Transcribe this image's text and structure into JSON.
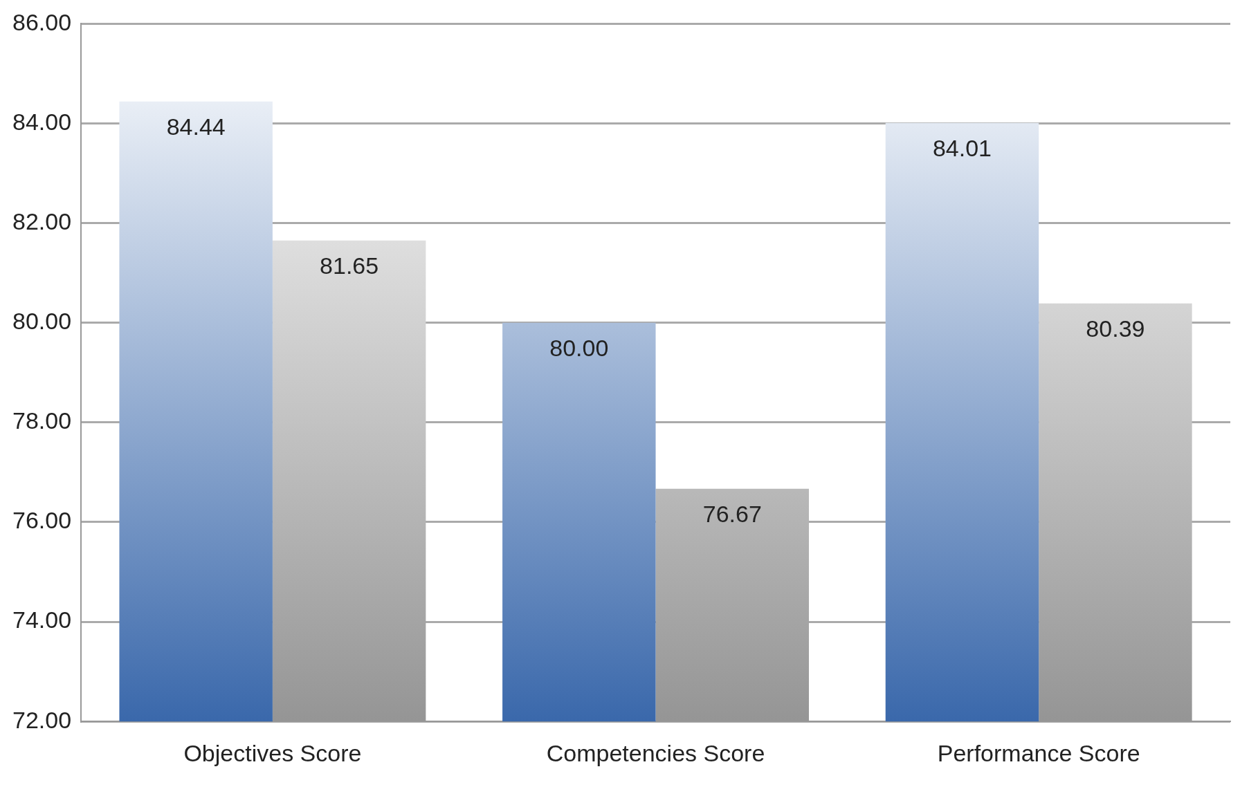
{
  "chart_data": {
    "type": "bar",
    "categories": [
      "Objectives Score",
      "Competencies Score",
      "Performance Score"
    ],
    "series": [
      {
        "color": "#3a68ab",
        "values": [
          84.44,
          80.0,
          84.01
        ],
        "value_labels": [
          "84.44",
          "80.00",
          "84.01"
        ]
      },
      {
        "color": "#959595",
        "values": [
          81.65,
          76.67,
          80.39
        ],
        "value_labels": [
          "81.65",
          "76.67",
          "80.39"
        ]
      }
    ],
    "ylim": [
      72,
      86
    ],
    "yticks": [
      {
        "value": 72,
        "label": "72.00"
      },
      {
        "value": 74,
        "label": "74.00"
      },
      {
        "value": 76,
        "label": "76.00"
      },
      {
        "value": 78,
        "label": "78.00"
      },
      {
        "value": 80,
        "label": "80.00"
      },
      {
        "value": 82,
        "label": "82.00"
      },
      {
        "value": 84,
        "label": "84.00"
      },
      {
        "value": 86,
        "label": "86.00"
      }
    ],
    "grid": "y",
    "legend": false
  }
}
